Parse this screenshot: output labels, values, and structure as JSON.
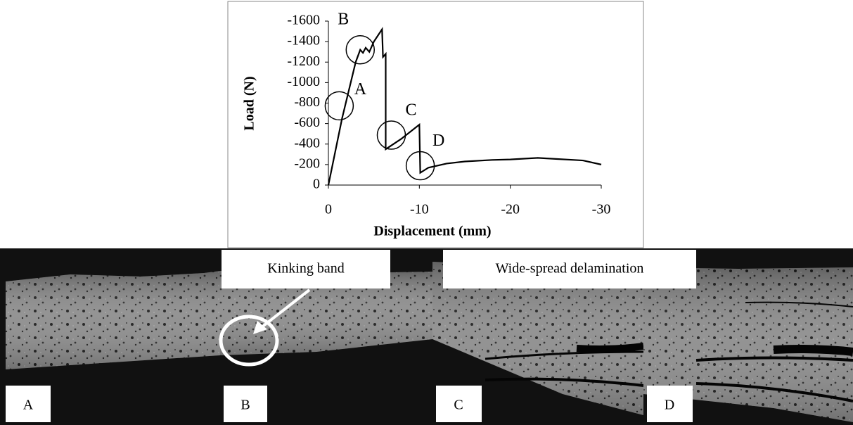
{
  "chart_data": {
    "type": "line",
    "xlabel": "Displacement (mm)",
    "ylabel": "Load (N)",
    "x": [
      0,
      -1.5,
      -3,
      -3.5,
      -3.8,
      -4.1,
      -4.5,
      -5,
      -5.9,
      -6.0,
      -6.3,
      -6.3,
      -8,
      -10,
      -10.1,
      -11,
      -13,
      -15,
      -18,
      -20,
      -22,
      -23,
      -25,
      -27,
      -28,
      -30
    ],
    "values": [
      0,
      -650,
      -1200,
      -1320,
      -1290,
      -1340,
      -1300,
      -1400,
      -1520,
      -1250,
      -1280,
      -350,
      -450,
      -590,
      -120,
      -170,
      -210,
      -230,
      -245,
      -250,
      -260,
      -265,
      -255,
      -245,
      -240,
      -200
    ],
    "color": "#000000",
    "xlim": [
      0,
      -30
    ],
    "xticks": [
      0,
      -10,
      -20,
      -30
    ],
    "ylim": [
      0,
      -1600
    ],
    "yticks": [
      0,
      -200,
      -400,
      -600,
      -800,
      -1000,
      -1200,
      -1400,
      -1600
    ],
    "grid": false,
    "annotations": [
      "A",
      "B",
      "C",
      "D"
    ]
  },
  "panels": {
    "labels": [
      "A",
      "B",
      "C",
      "D"
    ],
    "callouts": [
      "Kinking band",
      "Wide-spread delamination"
    ]
  }
}
